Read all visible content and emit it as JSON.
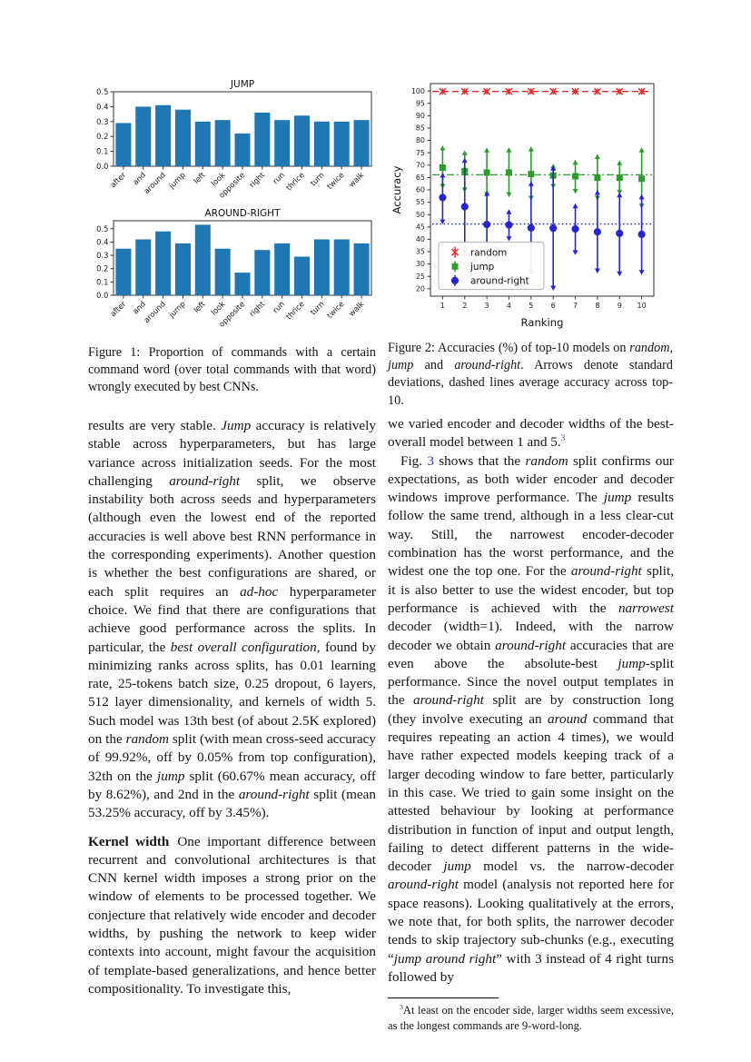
{
  "page": {
    "background": "#ffffff",
    "link_color": "#3a3ab8"
  },
  "chart_data": [
    {
      "type": "bar",
      "title": "JUMP",
      "categories": [
        "after",
        "and",
        "around",
        "jump",
        "left",
        "look",
        "opposite",
        "right",
        "run",
        "thrice",
        "turn",
        "twice",
        "walk"
      ],
      "values": [
        0.29,
        0.4,
        0.41,
        0.38,
        0.3,
        0.31,
        0.22,
        0.36,
        0.31,
        0.34,
        0.3,
        0.3,
        0.31
      ],
      "yticks": [
        0.0,
        0.1,
        0.2,
        0.3,
        0.4,
        0.5
      ],
      "ylim": [
        0,
        0.5
      ],
      "bar_color": "#1f77b4",
      "xlabel": "",
      "ylabel": "",
      "grid": false
    },
    {
      "type": "bar",
      "title": "AROUND-RIGHT",
      "categories": [
        "after",
        "and",
        "around",
        "jump",
        "left",
        "look",
        "opposite",
        "right",
        "run",
        "thrice",
        "turn",
        "twice",
        "walk"
      ],
      "values": [
        0.35,
        0.42,
        0.48,
        0.39,
        0.53,
        0.35,
        0.17,
        0.34,
        0.39,
        0.29,
        0.42,
        0.42,
        0.39
      ],
      "yticks": [
        0.0,
        0.1,
        0.2,
        0.3,
        0.4,
        0.5
      ],
      "ylim": [
        0,
        0.56
      ],
      "bar_color": "#1f77b4",
      "xlabel": "",
      "ylabel": "",
      "grid": false
    },
    {
      "type": "scatter",
      "title": "",
      "xlabel": "Ranking",
      "ylabel": "Accuracy",
      "x": [
        1,
        2,
        3,
        4,
        5,
        6,
        7,
        8,
        9,
        10
      ],
      "xlim": [
        0.45,
        10.55
      ],
      "ylim": [
        17,
        103
      ],
      "yticks": [
        20,
        25,
        30,
        35,
        40,
        45,
        50,
        55,
        60,
        65,
        70,
        75,
        80,
        85,
        90,
        95,
        100
      ],
      "legend_position": "lower left",
      "series": [
        {
          "name": "random",
          "color": "#e22a2a",
          "marker": "x",
          "mean_line": {
            "value": 99.8,
            "style": "dashed"
          },
          "arrows": false,
          "values": [
            99.8,
            99.8,
            99.8,
            99.8,
            99.8,
            99.8,
            99.8,
            99.8,
            99.8,
            99.8
          ],
          "err_low": [
            98.5,
            98.5,
            98.5,
            98.5,
            98.5,
            98.5,
            98.5,
            98.5,
            98.5,
            98.5
          ],
          "err_high": [
            101.1,
            101.1,
            101.1,
            101.1,
            101.1,
            101.1,
            101.1,
            101.1,
            101.1,
            101.1
          ]
        },
        {
          "name": "jump",
          "color": "#2e9b2e",
          "marker": "square",
          "mean_line": {
            "value": 66.1,
            "style": "dashdot"
          },
          "arrows": true,
          "values": [
            69.0,
            67.6,
            67.0,
            67.0,
            66.4,
            65.8,
            65.5,
            64.9,
            64.9,
            64.5
          ],
          "err_low": [
            60.4,
            59.0,
            57.0,
            57.0,
            55.6,
            60.4,
            58.4,
            55.6,
            58.0,
            52.4
          ],
          "err_high": [
            78.0,
            76.1,
            77.2,
            77.2,
            77.6,
            70.6,
            72.2,
            74.5,
            72.0,
            77.2
          ]
        },
        {
          "name": "around-right",
          "color": "#2626cc",
          "marker": "circle",
          "mean_line": {
            "value": 46.2,
            "style": "dotted"
          },
          "arrows": true,
          "values": [
            56.9,
            53.2,
            46.0,
            45.8,
            44.6,
            44.5,
            44.2,
            43.0,
            42.4,
            42.0
          ],
          "err_low": [
            46.0,
            33.5,
            34.5,
            39.2,
            25.6,
            19.2,
            33.6,
            26.2,
            25.0,
            25.6
          ],
          "err_high": [
            67.0,
            73.0,
            59.6,
            52.2,
            63.6,
            69.8,
            54.6,
            60.0,
            59.0,
            58.2
          ]
        }
      ]
    }
  ],
  "captions": {
    "figure1": [
      {
        "t": "Figure 1:  Proportion of commands with a certain command word (over total commands with that word) wrongly executed by best CNNs."
      }
    ],
    "figure2": [
      {
        "t": "Figure 2: Accuracies (%) of top-10 models on "
      },
      {
        "t": "random",
        "i": true
      },
      {
        "t": ", "
      },
      {
        "t": "jump",
        "i": true
      },
      {
        "t": " and "
      },
      {
        "t": "around-right",
        "i": true
      },
      {
        "t": ". Arrows denote standard deviations, dashed lines average accuracy across top-10."
      }
    ]
  },
  "body": {
    "left": {
      "para1": [
        {
          "t": "results are very stable.  "
        },
        {
          "t": "Jump",
          "i": true
        },
        {
          "t": " accuracy is relatively stable across hyperparameters, but has large variance across initialization seeds.  For the most challenging "
        },
        {
          "t": "around-right",
          "i": true
        },
        {
          "t": " split, we observe instability both across seeds and hyperparameters (although even the lowest end of the reported accuracies is well above best RNN performance in the corresponding experiments).  Another question is whether the best configurations are shared, or each split requires an "
        },
        {
          "t": "ad-hoc",
          "i": true
        },
        {
          "t": " hyperparameter choice. We find that there are configurations that achieve good performance across the splits.  In particular, the "
        },
        {
          "t": "best overall configuration",
          "i": true
        },
        {
          "t": ", found by minimizing ranks across splits, has 0.01 learning rate, 25-tokens batch size, 0.25 dropout, 6 layers, 512 layer dimensionality, and kernels of width 5. Such model was 13th best (of about 2.5K explored) on the "
        },
        {
          "t": "random",
          "i": true
        },
        {
          "t": " split (with mean cross-seed accuracy of 99.92%, off by 0.05% from top configuration), 32th on the "
        },
        {
          "t": "jump",
          "i": true
        },
        {
          "t": " split (60.67% mean accuracy, off by 8.62%), and 2nd in the "
        },
        {
          "t": "around-right",
          "i": true
        },
        {
          "t": " split (mean 53.25% accuracy, off by 3.45%)."
        }
      ],
      "para2": [
        {
          "t": "Kernel width",
          "b": true
        },
        {
          "t": "One important difference between recurrent and convolutional architectures is that CNN kernel width imposes a strong prior on the window of elements to be processed together. We conjecture that relatively wide encoder and decoder widths, by pushing the network to keep wider contexts into account, might favour the acquisition of template-based generalizations, and hence better compositionality. To investigate this,"
        }
      ]
    },
    "right": {
      "para1": [
        {
          "t": "we varied encoder and decoder widths of the best-overall model between 1 and 5."
        },
        {
          "t": "3",
          "sup": true,
          "link": true
        }
      ],
      "para2": [
        {
          "t": "Fig. "
        },
        {
          "t": "3",
          "link": true
        },
        {
          "t": " shows that the "
        },
        {
          "t": "random",
          "i": true
        },
        {
          "t": " split confirms our expectations, as both wider encoder and decoder windows improve performance.  The "
        },
        {
          "t": "jump",
          "i": true
        },
        {
          "t": " results follow the same trend, although in a less clear-cut way. Still, the narrowest encoder-decoder combination has the worst performance, and the widest one the top one.  For the "
        },
        {
          "t": "around-right",
          "i": true
        },
        {
          "t": " split, it is also better to use the widest encoder, but top performance is achieved with the "
        },
        {
          "t": "narrowest",
          "i": true
        },
        {
          "t": " decoder (width=1).  Indeed, with the narrow decoder we obtain "
        },
        {
          "t": "around-right",
          "i": true
        },
        {
          "t": " accuracies that are even above the absolute-best "
        },
        {
          "t": "jump",
          "i": true
        },
        {
          "t": "-split performance.  Since the novel output templates in the "
        },
        {
          "t": "around-right",
          "i": true
        },
        {
          "t": " split are by construction long (they involve executing an "
        },
        {
          "t": "around",
          "i": true
        },
        {
          "t": " command that requires repeating an action 4 times), we would have rather expected models keeping track of a larger decoding window to fare better, particularly in this case.  We tried to gain some insight on the attested behaviour by looking at performance distribution in function of input and output length, failing to detect different patterns in the wide-decoder "
        },
        {
          "t": "jump",
          "i": true
        },
        {
          "t": " model vs. the narrow-decoder "
        },
        {
          "t": "around-right",
          "i": true
        },
        {
          "t": " model (analysis not reported here for space reasons).  Looking qualitatively at the errors, we note that, for both splits, the narrower decoder tends to skip trajectory sub-chunks (e.g., executing “"
        },
        {
          "t": "jump around right",
          "i": true
        },
        {
          "t": "” with 3 instead of 4 right turns followed by"
        }
      ]
    },
    "footnote": [
      {
        "t": "3",
        "sup": true
      },
      {
        "t": "At least on the encoder side, larger widths seem excessive, as the longest commands are 9-word-long."
      }
    ]
  }
}
